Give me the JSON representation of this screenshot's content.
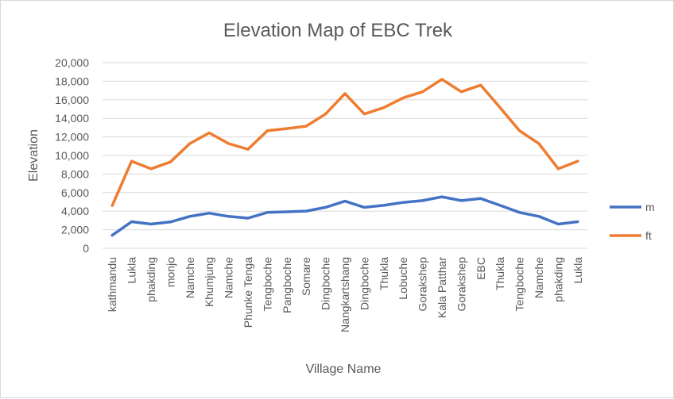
{
  "chart_data": {
    "type": "line",
    "title": "Elevation Map of EBC Trek",
    "xlabel": "Village Name",
    "ylabel": "Elevation",
    "ylim": [
      0,
      20000
    ],
    "yticks": [
      0,
      2000,
      4000,
      6000,
      8000,
      10000,
      12000,
      14000,
      16000,
      18000,
      20000
    ],
    "ytick_labels": [
      "0",
      "2,000",
      "4,000",
      "6,000",
      "8,000",
      "10,000",
      "12,000",
      "14,000",
      "16,000",
      "18,000",
      "20,000"
    ],
    "grid": true,
    "legend_position": "right",
    "categories": [
      "kathmandu",
      "Lukla",
      "phakding",
      "monjo",
      "Namche",
      "Khumjung",
      "Namche",
      "Phunke Tenga",
      "Tengboche",
      "Pangboche",
      "Somare",
      "Dingboche",
      "Nangkartshang",
      "Dingboche",
      "Thukla",
      "Lobuche",
      "Gorakshep",
      "Kala Patthar",
      "Gorakshep",
      "EBC",
      "Thukla",
      "Tengboche",
      "Namche",
      "phakding",
      "Lukla"
    ],
    "series": [
      {
        "name": "m",
        "color": "#4472c4",
        "values": [
          1400,
          2860,
          2610,
          2835,
          3440,
          3790,
          3440,
          3250,
          3860,
          3930,
          4010,
          4410,
          5080,
          4410,
          4620,
          4940,
          5140,
          5550,
          5140,
          5360,
          4620,
          3860,
          3440,
          2610,
          2860
        ]
      },
      {
        "name": "ft",
        "color": "#ed7d31",
        "values": [
          4600,
          9383,
          8563,
          9301,
          11286,
          12434,
          11286,
          10663,
          12664,
          12894,
          13156,
          14469,
          16667,
          14469,
          15157,
          16207,
          16864,
          18209,
          16864,
          17585,
          15157,
          12664,
          11286,
          8563,
          9383
        ]
      }
    ]
  }
}
